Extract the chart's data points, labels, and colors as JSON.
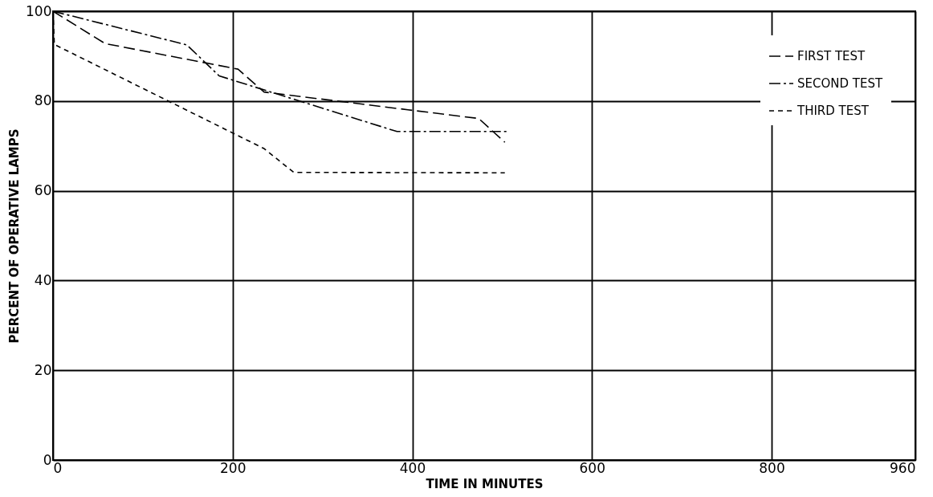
{
  "chart_data": {
    "type": "line",
    "xlabel": "TIME IN MINUTES",
    "ylabel": "PERCENT OF OPERATIVE LAMPS",
    "xlim": [
      0,
      960
    ],
    "xticks": [
      0,
      200,
      400,
      600,
      800,
      960
    ],
    "ylim": [
      0,
      100
    ],
    "yticks": [
      0,
      20,
      40,
      60,
      80,
      100
    ],
    "grid": true,
    "legend": "top right",
    "marker": "none",
    "series": [
      {
        "name": "FIRST TEST",
        "color": "#000000",
        "line_style": "dashed",
        "x": [
          0,
          58,
          206,
          235,
          474,
          503
        ],
        "values": [
          100,
          92.8,
          87.1,
          82,
          76.1,
          70.8
        ]
      },
      {
        "name": "SECOND TEST",
        "color": "#000000",
        "line_style": "dashed",
        "x": [
          0,
          149,
          185,
          383,
          507
        ],
        "values": [
          100,
          92.5,
          85.6,
          73.2,
          73.2
        ]
      },
      {
        "name": "THIRD TEST",
        "color": "#000000",
        "line_style": "dotted",
        "x": [
          0,
          1.5,
          235,
          268,
          503
        ],
        "values": [
          100,
          92.6,
          69.4,
          64.1,
          64
        ]
      }
    ]
  }
}
